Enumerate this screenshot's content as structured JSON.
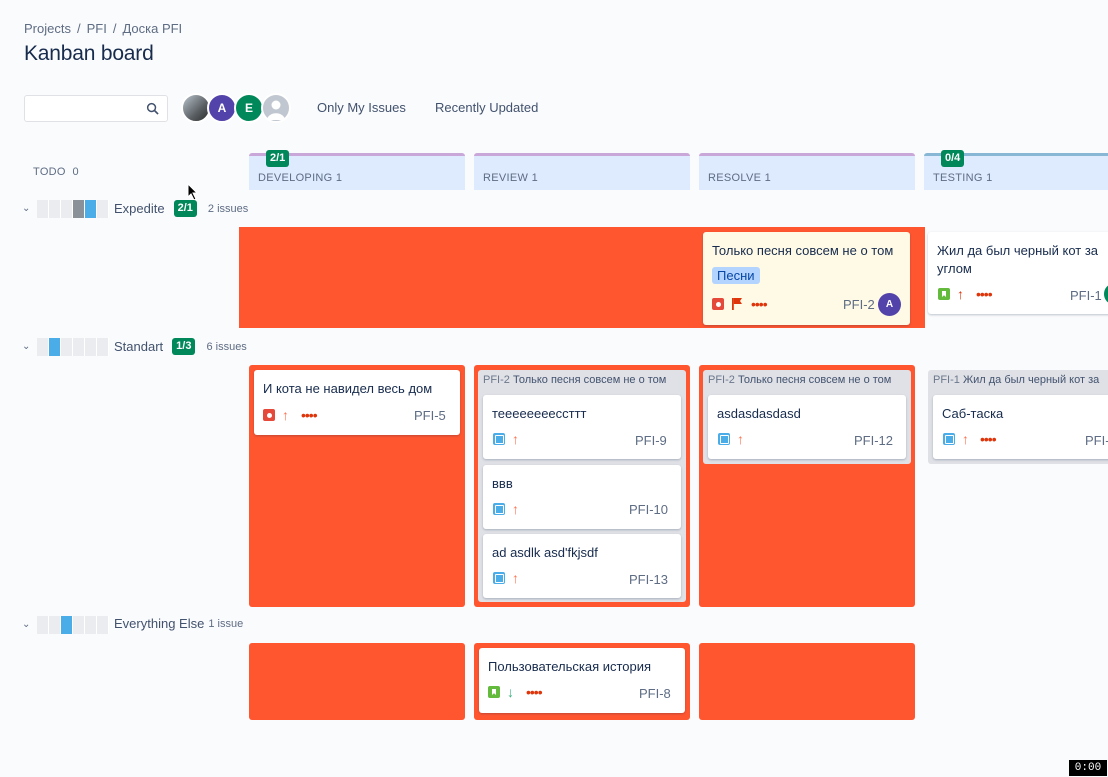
{
  "breadcrumb": [
    "Projects",
    "/",
    "PFI",
    "/",
    "Доска PFI"
  ],
  "title": "Kanban board",
  "search": {
    "placeholder": ""
  },
  "quick_filters": [
    "Only My Issues",
    "Recently Updated"
  ],
  "avatars": [
    {
      "initial": "",
      "color": "#8a8a8a"
    },
    {
      "initial": "A",
      "color": "#5243aa"
    },
    {
      "initial": "E",
      "color": "#00875a"
    },
    {
      "initial": "",
      "color": "#c1c7d0"
    }
  ],
  "todo": {
    "label": "TODO",
    "count": "0"
  },
  "columns": [
    {
      "label": "DEVELOPING",
      "count": "1",
      "wip": "2/1"
    },
    {
      "label": "REVIEW",
      "count": "1",
      "wip": ""
    },
    {
      "label": "RESOLVE",
      "count": "1",
      "wip": ""
    },
    {
      "label": "TESTING",
      "count": "1",
      "wip": "0/4"
    }
  ],
  "swimlanes": [
    {
      "name": "Expedite",
      "wip": "2/1",
      "count": "2 issues"
    },
    {
      "name": "Standart",
      "wip": "1/3",
      "count": "6 issues"
    },
    {
      "name": "Everything Else",
      "wip": "",
      "count": "1 issue"
    }
  ],
  "cards": {
    "pfi2": {
      "title": "Только песня совсем не о том",
      "label": "Песни",
      "key": "PFI-2",
      "assignee": "A"
    },
    "pfi1": {
      "title": "Жил да был черный кот за углом",
      "key": "PFI-1"
    },
    "pfi5": {
      "title": "И кота не навидел весь дом",
      "key": "PFI-5"
    },
    "pfi9": {
      "title": "теееееееессттт",
      "key": "PFI-9"
    },
    "pfi10": {
      "title": "ввв",
      "key": "PFI-10"
    },
    "pfi13": {
      "title": "ad asdlk asd'fkjsdf",
      "key": "PFI-13"
    },
    "pfi12": {
      "title": "asdasdasdasd",
      "key": "PFI-12"
    },
    "pfi1sub": {
      "title": "Саб-таска",
      "key": "PFI-"
    },
    "pfi8": {
      "title": "Пользовательская история",
      "key": "PFI-8"
    }
  },
  "parents": {
    "review": {
      "key": "PFI-2",
      "title": "Только песня совсем не о том"
    },
    "resolve": {
      "key": "PFI-2",
      "title": "Только песня совсем не о том"
    },
    "testing": {
      "key": "PFI-1",
      "title": "Жил да был черный кот за"
    }
  },
  "priority_dots": "••••",
  "time": "0:00"
}
